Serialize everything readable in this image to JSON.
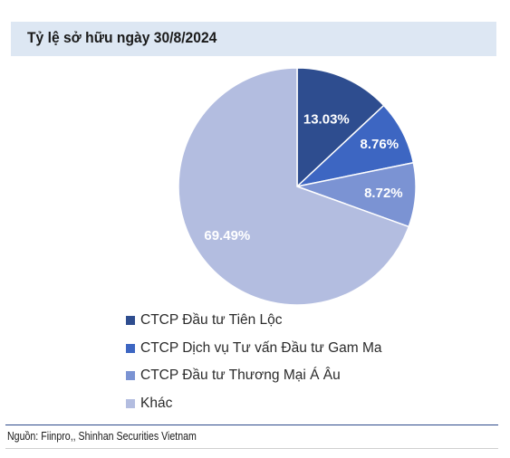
{
  "header": {
    "title": "Tỷ lệ sở hữu ngày 30/8/2024"
  },
  "chart_data": {
    "type": "pie",
    "title": "Tỷ lệ sở hữu ngày 30/8/2024",
    "slices": [
      {
        "label": "CTCP Đầu tư Tiên Lộc",
        "value": 13.03,
        "display": "13.03%",
        "color": "#2e4d8f"
      },
      {
        "label": "CTCP Dịch vụ Tư vấn Đầu tư Gam Ma",
        "value": 8.76,
        "display": "8.76%",
        "color": "#3d66c2"
      },
      {
        "label": "CTCP Đầu tư Thương Mại Á Âu",
        "value": 8.72,
        "display": "8.72%",
        "color": "#7b93d3"
      },
      {
        "label": "Khác",
        "value": 69.49,
        "display": "69.49%",
        "color": "#b3bde0"
      }
    ],
    "legend_position": "bottom"
  },
  "footer": {
    "source": "Nguồn:  Fiinpro,, Shinhan Securities Vietnam"
  }
}
